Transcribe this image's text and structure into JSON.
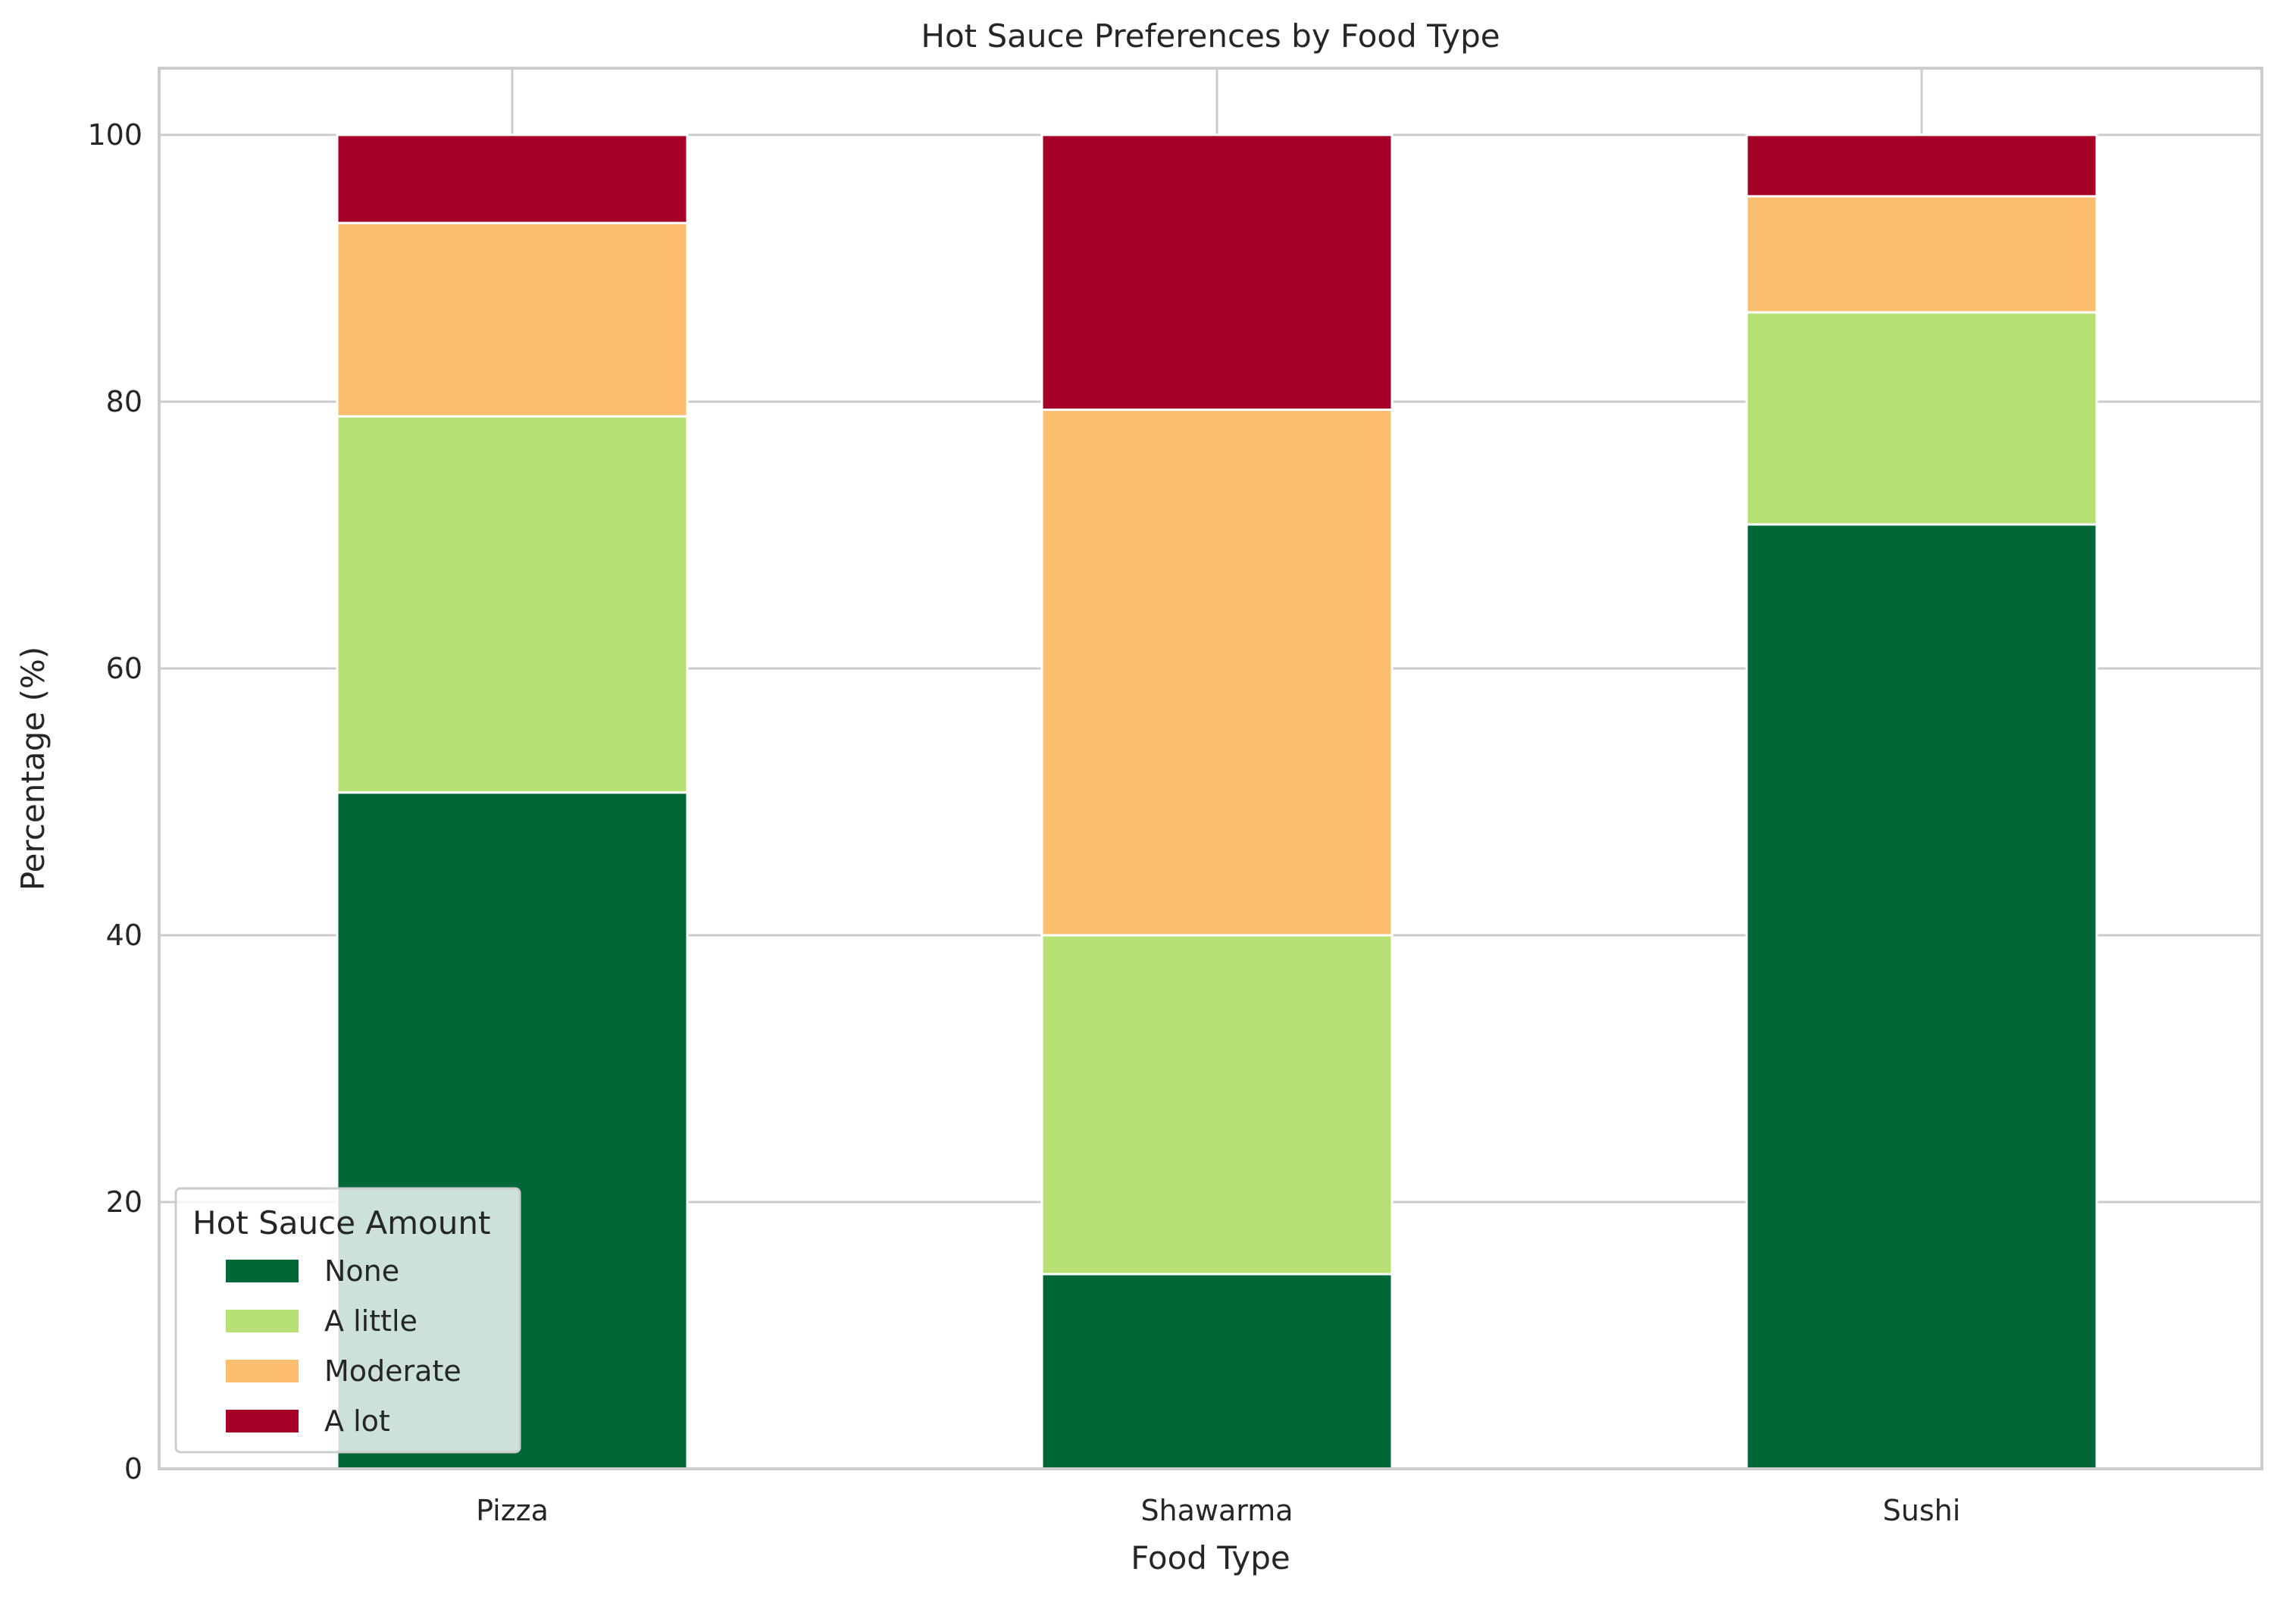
{
  "chart_data": {
    "type": "bar",
    "stacked": true,
    "title": "Hot Sauce Preferences by Food Type",
    "xlabel": "Food Type",
    "ylabel": "Percentage (%)",
    "categories": [
      "Pizza",
      "Shawarma",
      "Sushi"
    ],
    "ylim": [
      0,
      105
    ],
    "yticks": [
      0,
      20,
      40,
      60,
      80,
      100
    ],
    "grid": true,
    "legend": {
      "title": "Hot Sauce Amount",
      "placement": "lower-left"
    },
    "series": [
      {
        "name": "None",
        "color": "#006837",
        "values": [
          50.7,
          14.6,
          70.8
        ]
      },
      {
        "name": "A little",
        "color": "#b7e075",
        "values": [
          28.2,
          25.4,
          15.9
        ]
      },
      {
        "name": "Moderate",
        "color": "#fdbf6f",
        "values": [
          14.5,
          39.4,
          8.7
        ]
      },
      {
        "name": "A lot",
        "color": "#a50026",
        "values": [
          6.6,
          20.6,
          4.6
        ]
      }
    ]
  }
}
